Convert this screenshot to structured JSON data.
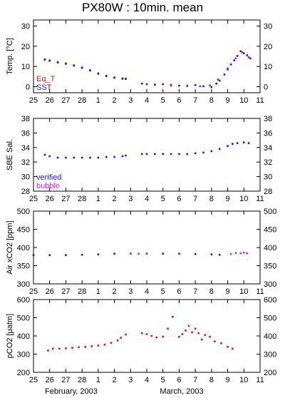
{
  "title": "PX80W : 10min. mean",
  "footer": {
    "left": "February, 2003",
    "right": "March, 2003"
  },
  "colors": {
    "red": "#ee1111",
    "blue": "#1a1aee",
    "magenta": "#dd22dd",
    "frame": "#000000"
  },
  "x_ticks": [
    "25",
    "26",
    "27",
    "28",
    "1",
    "2",
    "3",
    "4",
    "5",
    "6",
    "7",
    "8",
    "9",
    "10",
    "11"
  ],
  "chart_data": [
    {
      "type": "scatter",
      "ylabel": "Temp. [°C]",
      "ylim": [
        -3,
        33
      ],
      "yticks": [
        0,
        10,
        20,
        30
      ],
      "legend": [
        "Eq_T",
        "SST"
      ],
      "series": [
        {
          "name": "Eq_T",
          "color": "red",
          "x": [
            25.7,
            26.0,
            26.5,
            27.0,
            27.5,
            28.0,
            28.5,
            29.0,
            29.5,
            30.0,
            30.5,
            30.7
          ],
          "y": [
            13.5,
            13.0,
            12.2,
            11.5,
            10.6,
            9.5,
            8.2,
            6.6,
            5.4,
            4.6,
            4.1,
            4.0
          ]
        },
        {
          "name": "SST",
          "color": "blue",
          "x": [
            25.7,
            26.0,
            26.5,
            27.0,
            27.5,
            28.0,
            28.5,
            29.0,
            29.5,
            30.0,
            30.5,
            30.7
          ],
          "y": [
            13.3,
            12.8,
            12.0,
            11.3,
            10.4,
            9.3,
            8.0,
            6.4,
            5.2,
            4.4,
            3.9,
            3.8
          ]
        },
        {
          "name": "SST-b",
          "color": "blue",
          "x": [
            31.7,
            32.0,
            32.5,
            33.0,
            33.5,
            34.0,
            34.5,
            35.0,
            35.5,
            36.0,
            36.3,
            36.5,
            36.8,
            37.0,
            37.2,
            37.4,
            37.6,
            37.8,
            38.0,
            38.2,
            38.4
          ],
          "y": [
            1.5,
            1.2,
            1.0,
            1.2,
            0.6,
            0.5,
            0.3,
            0.8,
            0.2,
            -0.2,
            1.5,
            3.0,
            6.0,
            8.5,
            11.0,
            13.0,
            15.2,
            17.5,
            16.5,
            15.5,
            14.0
          ]
        },
        {
          "name": "Eq_T-b",
          "color": "red",
          "x": [
            33.5,
            34.5,
            35.3,
            35.9,
            36.4,
            37.0,
            37.5,
            37.9,
            38.3
          ],
          "y": [
            0.9,
            0.5,
            0.2,
            0.6,
            3.5,
            9.0,
            14.0,
            17.0,
            14.5
          ]
        }
      ]
    },
    {
      "type": "scatter",
      "ylabel": "SBE Sal.",
      "ylim": [
        28,
        38
      ],
      "yticks": [
        28,
        30,
        32,
        34,
        36,
        38
      ],
      "legend": [
        "verified",
        "bubble"
      ],
      "series": [
        {
          "name": "verified",
          "color": "blue",
          "x": [
            25.7,
            26.0,
            26.5,
            27.0,
            27.5,
            28.0,
            28.5,
            29.0,
            29.5,
            30.0,
            30.5,
            30.7
          ],
          "y": [
            33.0,
            32.8,
            32.6,
            32.6,
            32.6,
            32.6,
            32.6,
            32.6,
            32.7,
            32.7,
            32.8,
            32.9
          ]
        },
        {
          "name": "verified-b",
          "color": "blue",
          "x": [
            31.7,
            32.0,
            32.5,
            33.0,
            33.5,
            34.0,
            34.5,
            35.0,
            35.5,
            36.0,
            36.5,
            37.0,
            37.3,
            37.6,
            38.0,
            38.3
          ],
          "y": [
            33.1,
            33.1,
            33.1,
            33.1,
            33.1,
            33.1,
            33.1,
            33.2,
            33.3,
            33.5,
            33.8,
            34.2,
            34.5,
            34.6,
            34.7,
            34.6
          ]
        }
      ]
    },
    {
      "type": "scatter",
      "ylabel": "Air xCO2 [ppm]",
      "ylim": [
        300,
        500
      ],
      "yticks": [
        300,
        350,
        400,
        450,
        500
      ],
      "series": [
        {
          "name": "air",
          "color": "blue",
          "x": [
            25.0,
            26.0,
            27.0,
            28.0,
            29.0,
            30.0,
            31.0,
            32.0,
            33.0,
            34.0,
            35.0,
            36.0,
            36.5
          ],
          "y": [
            379,
            379,
            379,
            380,
            381,
            383,
            383,
            383,
            383,
            383,
            382,
            381,
            380
          ]
        },
        {
          "name": "air-bubble",
          "color": "magenta",
          "x": [
            31.0,
            31.5,
            32.0,
            37.2,
            37.5,
            37.8,
            38.0,
            38.2
          ],
          "y": [
            384,
            383,
            384,
            382,
            385,
            384,
            386,
            384
          ]
        }
      ]
    },
    {
      "type": "scatter",
      "ylabel": "pCO2 [μatm]",
      "ylim": [
        200,
        600
      ],
      "yticks": [
        200,
        300,
        400,
        500,
        600
      ],
      "series": [
        {
          "name": "pCO2",
          "color": "red",
          "x": [
            25.9,
            26.2,
            26.6,
            27.0,
            27.4,
            27.8,
            28.2,
            28.6,
            29.0,
            29.4,
            29.8,
            30.2,
            30.4,
            30.7,
            31.7,
            32.0,
            32.3,
            32.6,
            33.0,
            33.3,
            33.6,
            34.0,
            34.2,
            34.4,
            34.6,
            34.8,
            35.0,
            35.2,
            35.4,
            35.6,
            35.9,
            36.2,
            36.6,
            37.0,
            37.3
          ],
          "y": [
            320,
            330,
            330,
            332,
            335,
            338,
            340,
            343,
            347,
            352,
            362,
            375,
            390,
            408,
            415,
            410,
            400,
            392,
            396,
            440,
            505,
            395,
            410,
            430,
            455,
            420,
            440,
            415,
            380,
            405,
            395,
            370,
            360,
            340,
            330
          ]
        }
      ]
    }
  ]
}
